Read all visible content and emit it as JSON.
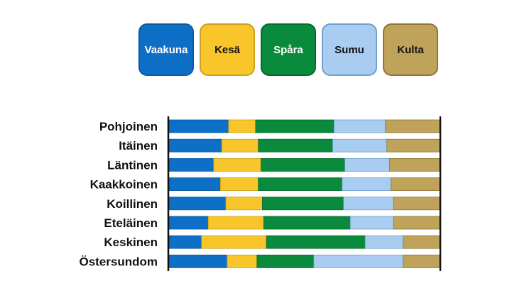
{
  "chart_data": {
    "type": "bar",
    "orientation": "horizontal",
    "stacked": true,
    "normalized": true,
    "legend_position": "top",
    "grid": false,
    "xlim": [
      0,
      100
    ],
    "categories": [
      "Pohjoinen",
      "Itäinen",
      "Läntinen",
      "Kaakkoinen",
      "Koillinen",
      "Eteläinen",
      "Keskinen",
      "Östersundom"
    ],
    "series": [
      {
        "name": "Vaakuna",
        "color": "#0e6fc7",
        "text_color": "#ffffff",
        "border_color": "#0a5aa3",
        "values": [
          22,
          19.5,
          16.5,
          19,
          21,
          14.5,
          12,
          21.5
        ]
      },
      {
        "name": "Kesä",
        "color": "#f8c62a",
        "text_color": "#111111",
        "border_color": "#caa01e",
        "values": [
          10,
          13.5,
          17.5,
          14,
          13.5,
          20.5,
          24,
          11
        ]
      },
      {
        "name": "Spåra",
        "color": "#0a8a3c",
        "text_color": "#ffffff",
        "border_color": "#07692e",
        "values": [
          29,
          27.5,
          31,
          31,
          30,
          32,
          36.5,
          21
        ]
      },
      {
        "name": "Sumu",
        "color": "#a9cdf0",
        "text_color": "#111111",
        "border_color": "#6fa0d0",
        "values": [
          19,
          20,
          16.5,
          18,
          18.5,
          16,
          14,
          33
        ]
      },
      {
        "name": "Kulta",
        "color": "#bfa35a",
        "text_color": "#111111",
        "border_color": "#8e7536",
        "values": [
          20,
          19.5,
          18.5,
          18,
          17,
          17,
          13.5,
          13.5
        ]
      }
    ]
  }
}
